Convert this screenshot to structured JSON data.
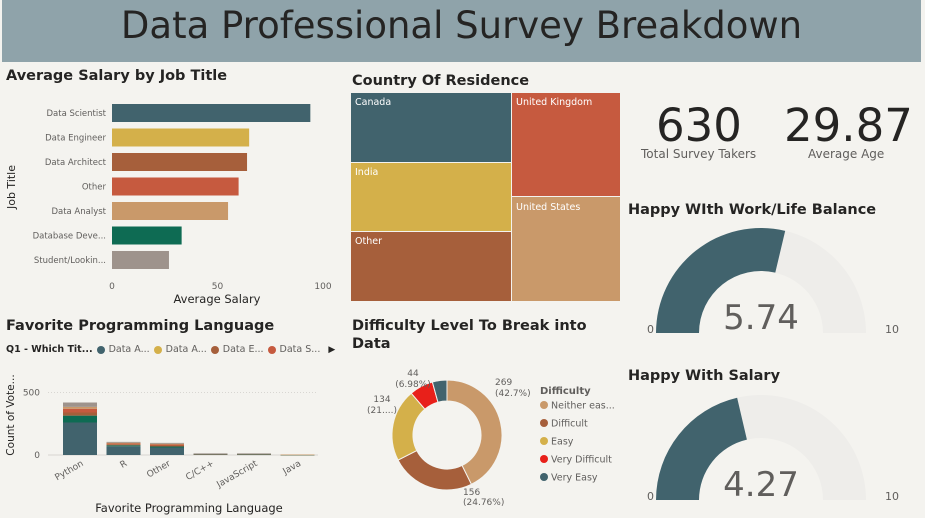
{
  "banner": {
    "title": "Data Professional Survey Breakdown"
  },
  "salary_chart": {
    "title": "Average Salary by Job Title",
    "chart_data": {
      "type": "bar",
      "orientation": "horizontal",
      "categories": [
        "Data Scientist",
        "Data Engineer",
        "Data Architect",
        "Other",
        "Data Analyst",
        "Database Deve...",
        "Student/Lookin..."
      ],
      "values": [
        94,
        65,
        64,
        60,
        55,
        33,
        27
      ],
      "colors": [
        "#41636d",
        "#d4b04a",
        "#a65f3b",
        "#c65a3f",
        "#c9996a",
        "#0e6b53",
        "#9e938c"
      ],
      "xlabel": "Average Salary",
      "ylabel": "Job Title",
      "xlim": [
        0,
        100
      ],
      "ticks": [
        "0",
        "50",
        "100"
      ]
    }
  },
  "country_chart": {
    "title": "Country Of Residence",
    "chart_data": {
      "type": "treemap",
      "cells": [
        {
          "label": "Canada",
          "color": "#41636d"
        },
        {
          "label": "India",
          "color": "#d4b04a"
        },
        {
          "label": "Other",
          "color": "#a65f3b"
        },
        {
          "label": "United Kingdom",
          "color": "#c65a3f"
        },
        {
          "label": "United States",
          "color": "#c9996a"
        }
      ]
    }
  },
  "kpis": {
    "takers_value": "630",
    "takers_label": "Total Survey Takers",
    "age_value": "29.87",
    "age_label": "Average Age"
  },
  "gauge_work": {
    "title": "Happy WIth Work/Life Balance",
    "value": 5.74,
    "value_label": "5.74",
    "min": 0,
    "max": 10,
    "min_label": "0",
    "max_label": "10"
  },
  "gauge_salary": {
    "title": "Happy With Salary",
    "value": 4.27,
    "value_label": "4.27",
    "min": 0,
    "max": 10,
    "min_label": "0",
    "max_label": "10"
  },
  "lang_chart": {
    "title": "Favorite Programming Language",
    "legend_title": "Q1 - Which Tit...",
    "legend": [
      {
        "label": "Data A...",
        "color": "#41636d"
      },
      {
        "label": "Data A...",
        "color": "#d4b04a"
      },
      {
        "label": "Data E...",
        "color": "#a65f3b"
      },
      {
        "label": "Data S...",
        "color": "#c65a3f"
      }
    ],
    "chart_data": {
      "type": "bar",
      "stacked": true,
      "categories": [
        "Python",
        "R",
        "Other",
        "C/C++",
        "JavaScript",
        "Java"
      ],
      "totals": [
        420,
        105,
        97,
        13,
        13,
        4
      ],
      "series": [
        {
          "color": "#41636d",
          "values": [
            260,
            70,
            60,
            7,
            6,
            2
          ]
        },
        {
          "color": "#0e6b53",
          "values": [
            55,
            8,
            8,
            2,
            2,
            1
          ]
        },
        {
          "color": "#a65f3b",
          "values": [
            25,
            8,
            8,
            1,
            2,
            0
          ]
        },
        {
          "color": "#c65a3f",
          "values": [
            30,
            8,
            10,
            1,
            1,
            0
          ]
        },
        {
          "color": "#c9996a",
          "values": [
            15,
            4,
            4,
            1,
            1,
            1
          ]
        },
        {
          "color": "#9e938c",
          "values": [
            35,
            7,
            7,
            1,
            1,
            0
          ]
        }
      ],
      "xlabel": "Favorite Programming Language",
      "ylabel": "Count of Vote...",
      "ylim": [
        0,
        600
      ],
      "yticks": [
        "0",
        "500"
      ]
    }
  },
  "difficulty_chart": {
    "title_line1": "Difficulty Level To Break into",
    "title_line2": "Data",
    "legend_title": "Difficulty",
    "chart_data": {
      "type": "donut",
      "slices": [
        {
          "label": "Neither eas...",
          "value": 269,
          "pct": "(42.7%)",
          "color": "#c9996a"
        },
        {
          "label": "Difficult",
          "value": 156,
          "pct": "(24.76%)",
          "color": "#a65f3b"
        },
        {
          "label": "Easy",
          "value": 134,
          "pct": "(21....)",
          "color": "#d4b04a"
        },
        {
          "label": "Very Difficult",
          "value": 44,
          "pct": "(6.98%)",
          "color": "#e8201a"
        },
        {
          "label": "Very Easy",
          "value": 27,
          "pct": "",
          "color": "#41636d"
        }
      ],
      "value_labels": [
        "269",
        "156",
        "134",
        "44"
      ]
    }
  }
}
